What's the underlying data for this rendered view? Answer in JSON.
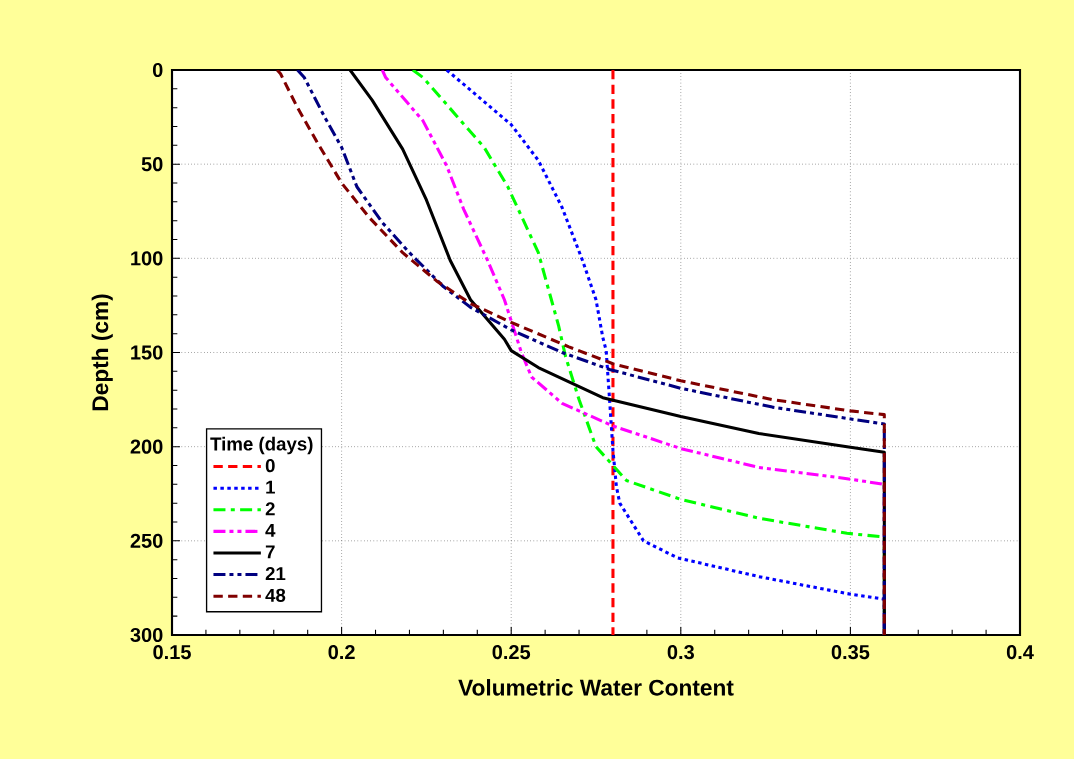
{
  "chart_data": {
    "type": "line",
    "xlabel": "Volumetric Water Content",
    "ylabel": "Depth (cm)",
    "legend_title": "Time (days)",
    "legend": "bottom left",
    "grid": true,
    "xlim": [
      0.15,
      0.4
    ],
    "xticks": [
      0.15,
      0.2,
      0.25,
      0.3,
      0.35,
      0.4
    ],
    "ylim": [
      300,
      0
    ],
    "yticks": [
      0,
      50,
      100,
      150,
      200,
      250,
      300
    ],
    "series": [
      {
        "name": "0",
        "color": "#ff0000",
        "line_style": "dashed",
        "x": [
          0.28,
          0.28
        ],
        "values": [
          0,
          300
        ]
      },
      {
        "name": "1",
        "color": "#0000ff",
        "line_style": "dotted",
        "x": [
          0.231,
          0.25,
          0.258,
          0.265,
          0.271,
          0.275,
          0.277,
          0.278,
          0.279,
          0.28,
          0.281,
          0.282,
          0.289,
          0.299,
          0.323,
          0.349,
          0.36,
          0.36
        ],
        "values": [
          0,
          29,
          48,
          73,
          101,
          122,
          142,
          149,
          175,
          202,
          221,
          230,
          250,
          259,
          269,
          278,
          281,
          300
        ]
      },
      {
        "name": "2",
        "color": "#00ff00",
        "line_style": "dashdot",
        "x": [
          0.221,
          0.224,
          0.242,
          0.249,
          0.258,
          0.264,
          0.266,
          0.27,
          0.275,
          0.281,
          0.284,
          0.3,
          0.323,
          0.349,
          0.36,
          0.36
        ],
        "values": [
          0,
          4,
          41,
          62,
          97,
          136,
          152,
          175,
          200,
          212,
          218,
          228,
          238,
          246,
          248,
          300
        ]
      },
      {
        "name": "4",
        "color": "#ff00ff",
        "line_style": "dashdotdot",
        "x": [
          0.212,
          0.213,
          0.224,
          0.231,
          0.236,
          0.243,
          0.248,
          0.253,
          0.256,
          0.265,
          0.28,
          0.3,
          0.323,
          0.349,
          0.36,
          0.36
        ],
        "values": [
          0,
          4,
          27,
          51,
          74,
          101,
          122,
          150,
          163,
          177,
          189,
          201,
          211,
          217,
          220,
          300
        ]
      },
      {
        "name": "7",
        "color": "#000000",
        "line_style": "solid",
        "x": [
          0.2025,
          0.209,
          0.218,
          0.225,
          0.232,
          0.238,
          0.248,
          0.25,
          0.258,
          0.277,
          0.3,
          0.323,
          0.349,
          0.36,
          0.36
        ],
        "values": [
          0,
          16,
          42,
          69,
          101,
          122,
          143,
          149,
          158,
          174,
          184,
          193,
          200,
          203,
          300
        ]
      },
      {
        "name": "21",
        "color": "#000080",
        "line_style": "dashdotdot",
        "x": [
          0.187,
          0.189,
          0.195,
          0.2,
          0.2045,
          0.212,
          0.22,
          0.23,
          0.238,
          0.25,
          0.265,
          0.279,
          0.3,
          0.327,
          0.349,
          0.36,
          0.36
        ],
        "values": [
          0,
          4,
          25,
          41,
          62,
          81,
          97,
          115,
          126,
          138,
          150,
          159,
          169,
          179,
          185,
          188,
          300
        ]
      },
      {
        "name": "48",
        "color": "#800000",
        "line_style": "dashed",
        "x": [
          0.181,
          0.182,
          0.187,
          0.193,
          0.2,
          0.208,
          0.218,
          0.228,
          0.238,
          0.25,
          0.267,
          0.28,
          0.3,
          0.327,
          0.35,
          0.36,
          0.36
        ],
        "values": [
          0,
          2,
          20,
          39,
          60,
          78,
          97,
          112,
          124,
          134,
          147,
          156,
          165,
          175,
          181,
          183,
          300
        ]
      }
    ]
  }
}
